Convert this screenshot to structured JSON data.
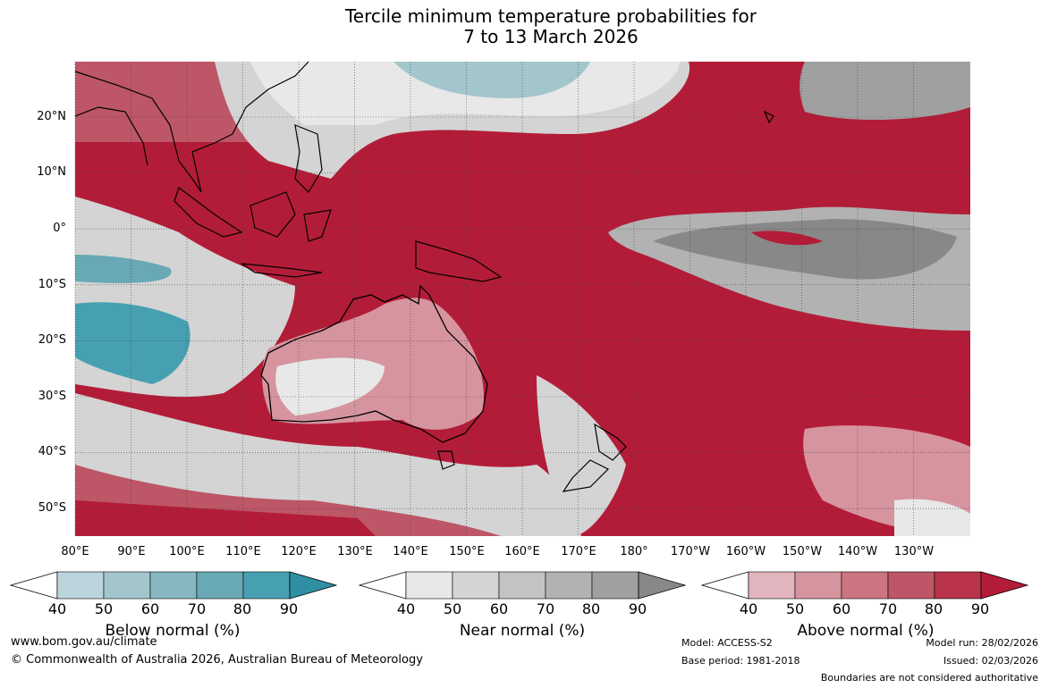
{
  "title_line1": "Tercile minimum temperature probabilities for",
  "title_line2": "7 to 13 March 2026",
  "lat_labels": [
    "20°N",
    "10°N",
    "0°",
    "10°S",
    "20°S",
    "30°S",
    "40°S",
    "50°S"
  ],
  "lon_labels": [
    "80°E",
    "90°E",
    "100°E",
    "110°E",
    "120°E",
    "130°E",
    "140°E",
    "150°E",
    "160°E",
    "170°E",
    "180°",
    "170°W",
    "160°W",
    "150°W",
    "140°W",
    "130°W"
  ],
  "colorbars": {
    "below": {
      "label": "Below normal (%)",
      "ticks": [
        "40",
        "50",
        "60",
        "70",
        "80",
        "90"
      ],
      "colors": [
        "#ffffff",
        "#bcd5dc",
        "#a3c6cd",
        "#87b7c0",
        "#69a8b5",
        "#47a0b2",
        "#2f8fa3"
      ]
    },
    "near": {
      "label": "Near normal (%)",
      "ticks": [
        "40",
        "50",
        "60",
        "70",
        "80",
        "90"
      ],
      "colors": [
        "#ffffff",
        "#e8e8e8",
        "#d4d4d4",
        "#c3c3c3",
        "#b2b2b2",
        "#a0a0a0",
        "#888888"
      ]
    },
    "above": {
      "label": "Above normal (%)",
      "ticks": [
        "40",
        "50",
        "60",
        "70",
        "80",
        "90"
      ],
      "colors": [
        "#ffffff",
        "#e2b4bd",
        "#d6949f",
        "#ca7580",
        "#bd5666",
        "#b9344a",
        "#b31c38"
      ]
    }
  },
  "footer": {
    "url": "www.bom.gov.au/climate",
    "copyright": "© Commonwealth of Australia 2026, Australian Bureau of Meteorology",
    "model": "Model: ACCESS-S2",
    "base_period": "Base period: 1981-2018",
    "model_run": "Model run: 28/02/2026",
    "issued": "Issued: 02/03/2026",
    "disclaimer": "Boundaries are not considered authoritative"
  }
}
